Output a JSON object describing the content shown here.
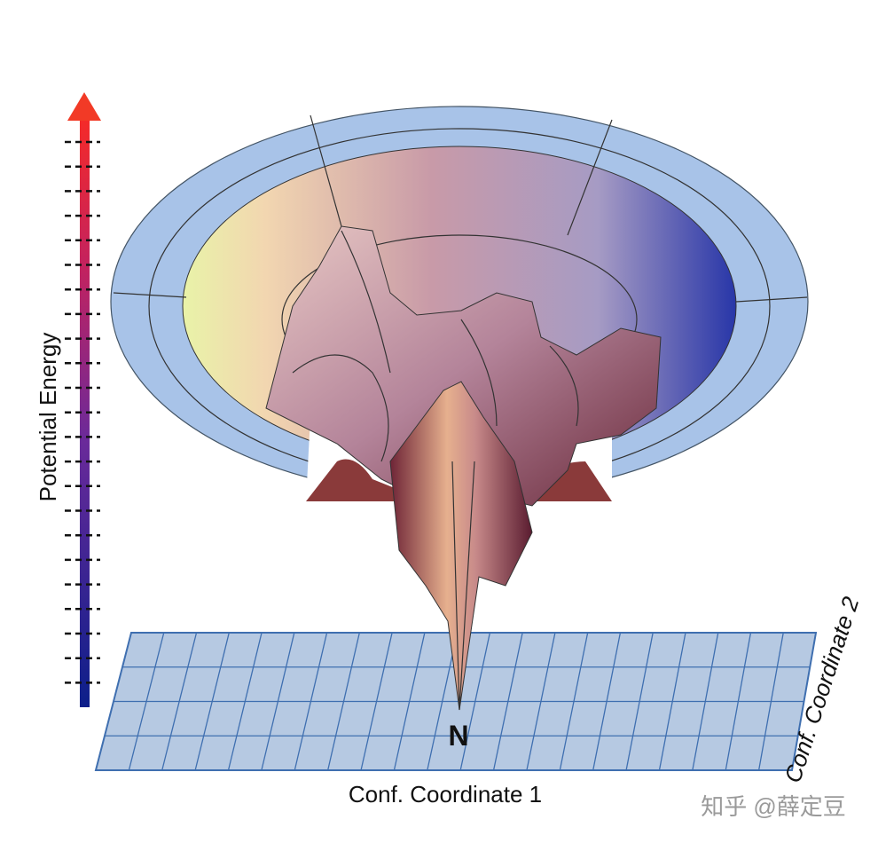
{
  "axis_labels": {
    "energy": "Potential Energy",
    "coordinate_1": "Conf. Coordinate 1",
    "coordinate_2": "Conf. Coordinate 2"
  },
  "native_state": "N",
  "watermark": "知乎 @薛定豆"
}
